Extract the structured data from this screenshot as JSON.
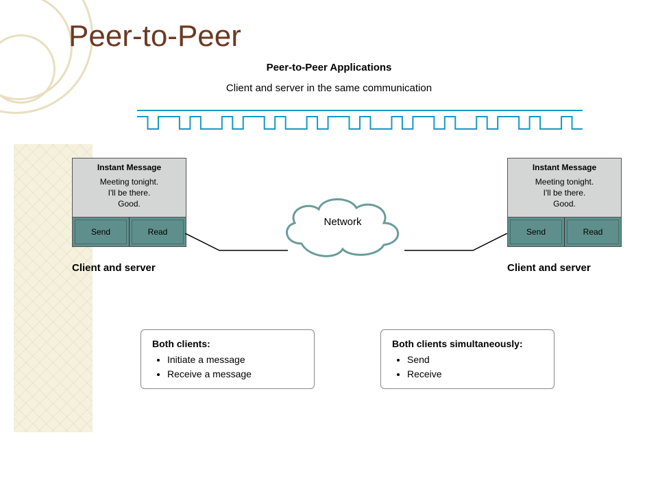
{
  "colors": {
    "title": "#6b3a22",
    "signal": "#1799c4",
    "box_bg": "#d3d6d5",
    "btn_bg": "#5e8f8c",
    "cloud_stroke": "#6a9c9a",
    "deco": "#e7dfbf",
    "square_bg": "#f4efd8"
  },
  "slide": {
    "title": "Peer-to-Peer",
    "subtitle1": "Peer-to-Peer Applications",
    "subtitle2": "Client and server in the same communication"
  },
  "peer": {
    "header": "Instant Message",
    "line1": "Meeting tonight.",
    "line2": "I'll be there.",
    "line3": "Good.",
    "btn_send": "Send",
    "btn_read": "Read",
    "caption": "Client and server"
  },
  "center": {
    "label": "Network"
  },
  "info_left": {
    "head": "Both clients:",
    "b1": "Initiate a message",
    "b2": "Receive a message"
  },
  "info_right": {
    "head": "Both clients simultaneously:",
    "b1": "Send",
    "b2": "Receive"
  },
  "signal": {
    "bits": "101101001011010010110100101101001011010010"
  }
}
